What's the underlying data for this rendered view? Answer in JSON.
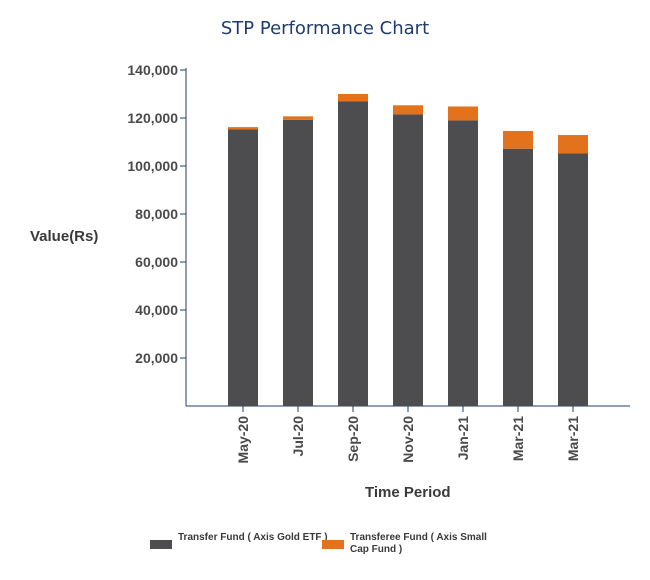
{
  "chart_data": {
    "type": "bar",
    "stacked": true,
    "title": "STP Performance Chart",
    "xlabel": "Time Period",
    "ylabel": "Value(Rs)",
    "ylim": [
      0,
      140000
    ],
    "yticks": [
      20000,
      40000,
      60000,
      80000,
      100000,
      120000,
      140000
    ],
    "ytick_labels": [
      "20,000",
      "40,000",
      "60,000",
      "80,000",
      "100,000",
      "120,000",
      "140,000"
    ],
    "categories": [
      "May-20",
      "Jul-20",
      "Sep-20",
      "Nov-20",
      "Jan-21",
      "Mar-21",
      "Mar-21"
    ],
    "series": [
      {
        "name": "Transfer Fund ( Axis Gold ETF )",
        "color": "#4d4d4f",
        "values": [
          115200,
          119200,
          127000,
          121500,
          119000,
          107200,
          105200
        ]
      },
      {
        "name": "Transferee Fund ( Axis Small Cap Fund )",
        "color": "#e2721b",
        "values": [
          1000,
          1500,
          3000,
          3800,
          5800,
          7400,
          7700
        ]
      }
    ],
    "grid": false,
    "legend_position": "bottom"
  }
}
